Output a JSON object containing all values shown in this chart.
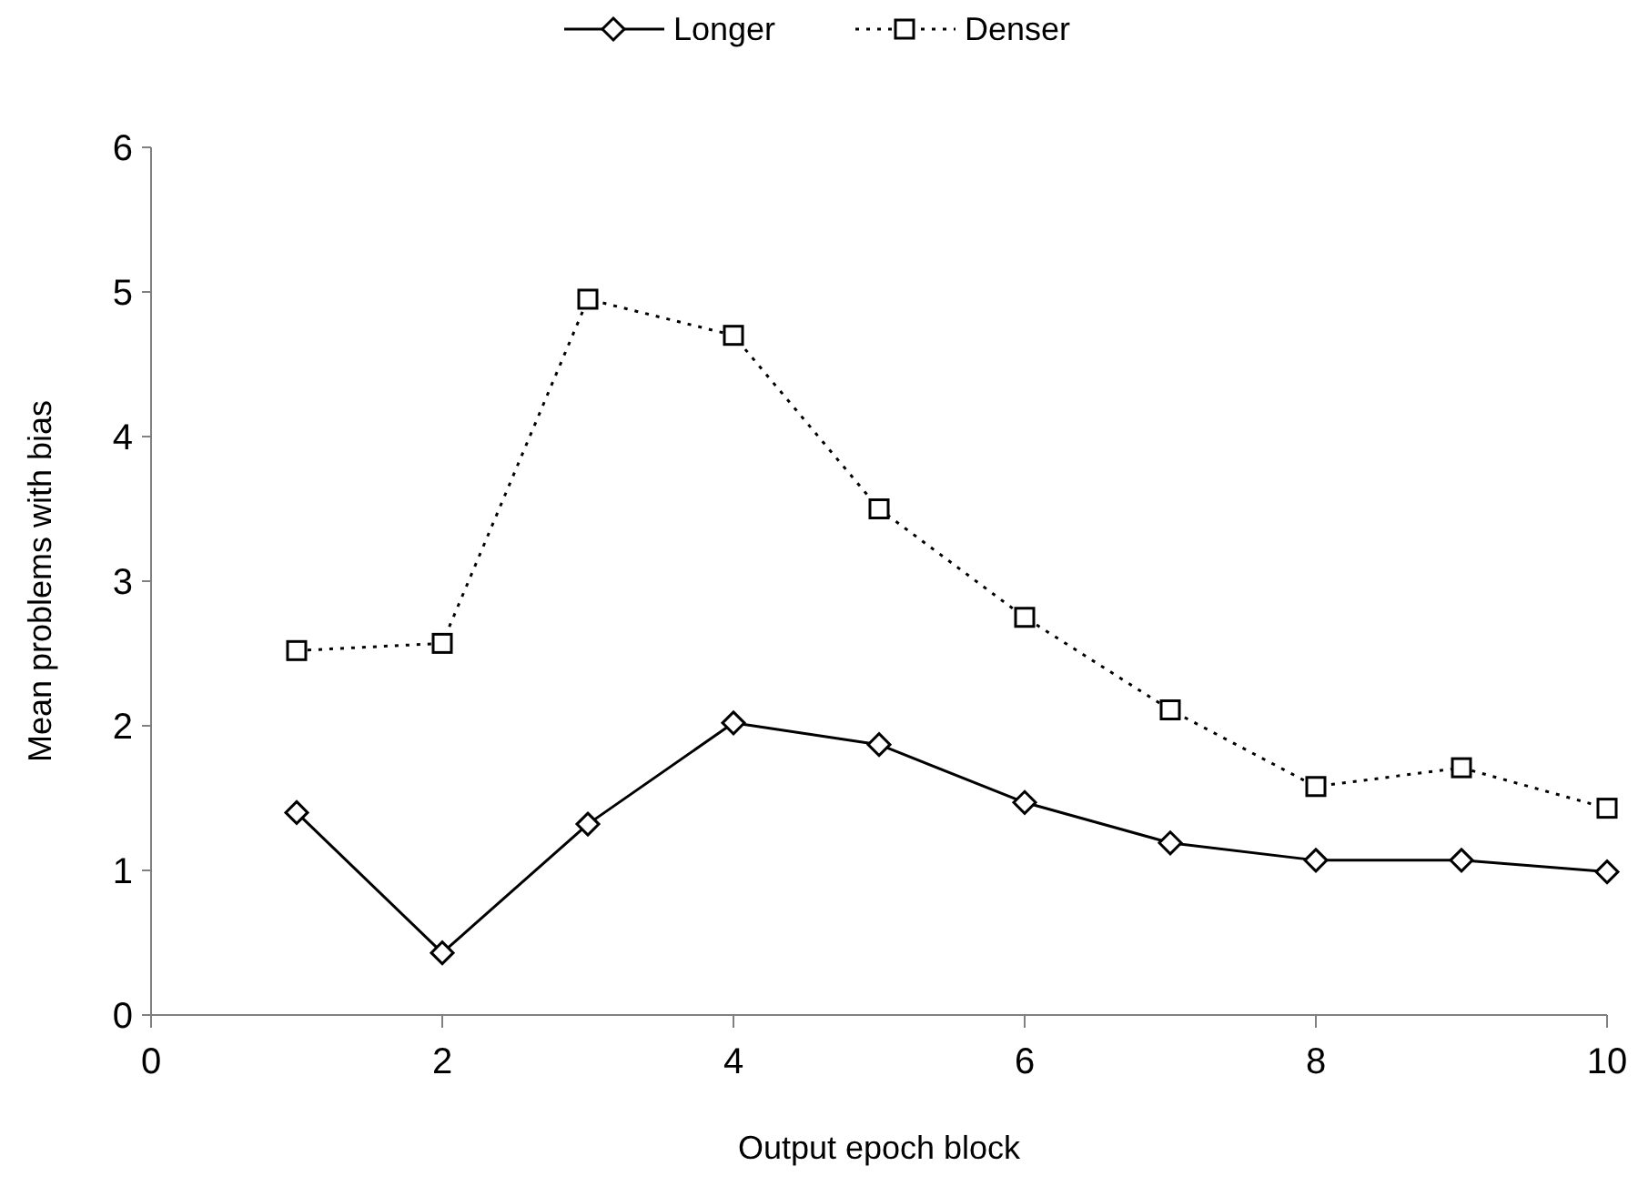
{
  "chart_data": {
    "type": "line",
    "xlabel": "Output epoch block",
    "ylabel": "Mean problems with bias",
    "x": [
      1,
      2,
      3,
      4,
      5,
      6,
      7,
      8,
      9,
      10
    ],
    "series": [
      {
        "name": "Longer",
        "color": "#000000",
        "values": [
          1.4,
          0.43,
          1.32,
          2.02,
          1.87,
          1.47,
          1.19,
          1.07,
          1.07,
          0.99
        ],
        "marker": "diamond",
        "line_style": "solid"
      },
      {
        "name": "Denser",
        "color": "#000000",
        "values": [
          2.52,
          2.57,
          4.95,
          4.7,
          3.5,
          2.75,
          2.11,
          1.58,
          1.71,
          1.43
        ],
        "marker": "square",
        "line_style": "dotted"
      }
    ],
    "xlim": [
      0,
      10
    ],
    "xticks": [
      0,
      2,
      4,
      6,
      8,
      10
    ],
    "ylim": [
      0,
      6
    ],
    "yticks": [
      0,
      1,
      2,
      3,
      4,
      5,
      6
    ],
    "grid": false,
    "legend": "top"
  }
}
